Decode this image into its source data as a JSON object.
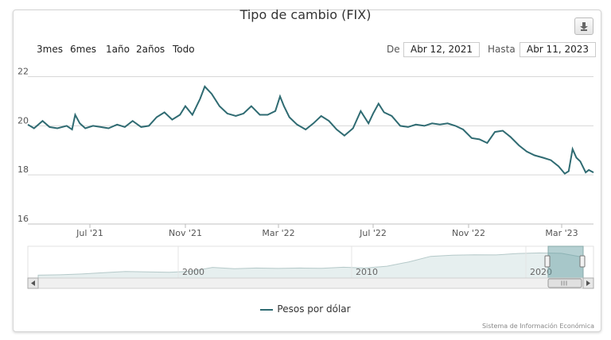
{
  "chart_data": {
    "type": "line",
    "title": "Tipo de cambio (FIX)",
    "xlabel": "",
    "ylabel": "",
    "x_tick_labels": [
      "Jul '21",
      "Nov '21",
      "Mar '22",
      "Jul '22",
      "Nov '22",
      "Mar '23"
    ],
    "y_ticks": [
      16,
      18,
      20,
      22
    ],
    "ylim": [
      16,
      22.6
    ],
    "grid": true,
    "legend_position": "bottom",
    "series": [
      {
        "name": "Pesos por dólar",
        "color": "#2f6b72",
        "x": [
          "2021-04-12",
          "2021-04-20",
          "2021-05-01",
          "2021-05-10",
          "2021-05-20",
          "2021-06-01",
          "2021-06-08",
          "2021-06-12",
          "2021-06-18",
          "2021-06-25",
          "2021-07-05",
          "2021-07-15",
          "2021-07-25",
          "2021-08-05",
          "2021-08-15",
          "2021-08-25",
          "2021-09-05",
          "2021-09-15",
          "2021-09-25",
          "2021-10-05",
          "2021-10-15",
          "2021-10-25",
          "2021-11-01",
          "2021-11-10",
          "2021-11-20",
          "2021-11-26",
          "2021-12-05",
          "2021-12-15",
          "2021-12-25",
          "2022-01-05",
          "2022-01-15",
          "2022-01-25",
          "2022-02-05",
          "2022-02-15",
          "2022-02-25",
          "2022-03-03",
          "2022-03-08",
          "2022-03-15",
          "2022-03-25",
          "2022-04-05",
          "2022-04-15",
          "2022-04-25",
          "2022-05-05",
          "2022-05-15",
          "2022-05-25",
          "2022-06-05",
          "2022-06-15",
          "2022-06-25",
          "2022-07-01",
          "2022-07-08",
          "2022-07-15",
          "2022-07-25",
          "2022-08-05",
          "2022-08-15",
          "2022-08-25",
          "2022-09-05",
          "2022-09-15",
          "2022-09-25",
          "2022-10-05",
          "2022-10-15",
          "2022-10-25",
          "2022-11-05",
          "2022-11-15",
          "2022-11-25",
          "2022-12-05",
          "2022-12-15",
          "2022-12-25",
          "2023-01-05",
          "2023-01-15",
          "2023-01-25",
          "2023-02-05",
          "2023-02-15",
          "2023-02-25",
          "2023-03-05",
          "2023-03-10",
          "2023-03-15",
          "2023-03-20",
          "2023-03-25",
          "2023-04-01",
          "2023-04-05",
          "2023-04-11"
        ],
        "values": [
          20.05,
          19.9,
          20.2,
          19.95,
          19.9,
          20.0,
          19.85,
          20.45,
          20.1,
          19.9,
          20.0,
          19.95,
          19.9,
          20.05,
          19.95,
          20.2,
          19.95,
          20.0,
          20.35,
          20.55,
          20.25,
          20.45,
          20.8,
          20.45,
          21.1,
          21.6,
          21.3,
          20.8,
          20.5,
          20.4,
          20.5,
          20.8,
          20.45,
          20.45,
          20.6,
          21.2,
          20.8,
          20.35,
          20.05,
          19.85,
          20.1,
          20.4,
          20.2,
          19.85,
          19.6,
          19.9,
          20.6,
          20.1,
          20.5,
          20.9,
          20.55,
          20.4,
          20.0,
          19.95,
          20.05,
          20.0,
          20.1,
          20.05,
          20.1,
          20.0,
          19.85,
          19.5,
          19.45,
          19.3,
          19.75,
          19.8,
          19.55,
          19.2,
          18.95,
          18.8,
          18.7,
          18.6,
          18.35,
          18.05,
          18.15,
          19.05,
          18.7,
          18.55,
          18.1,
          18.2,
          18.1
        ]
      }
    ]
  },
  "toolbar": {
    "ranges": [
      "3mes",
      "6mes",
      "1año",
      "2años",
      "Todo"
    ],
    "from_label": "De",
    "from_value": "Abr 12, 2021",
    "to_label": "Hasta",
    "to_value": "Abr 11, 2023"
  },
  "navigator": {
    "tick_labels": [
      "2000",
      "2010",
      "2020"
    ],
    "history_values": [
      9.4,
      9.6,
      10.0,
      10.6,
      11.2,
      11.0,
      10.8,
      11.3,
      13.2,
      12.6,
      12.9,
      12.7,
      12.9,
      12.8,
      13.3,
      12.9,
      13.8,
      15.9,
      18.6,
      19.2,
      19.4,
      19.3,
      20.0,
      20.3,
      20.1,
      18.2
    ]
  },
  "credits": "Sistema de Información Económica"
}
